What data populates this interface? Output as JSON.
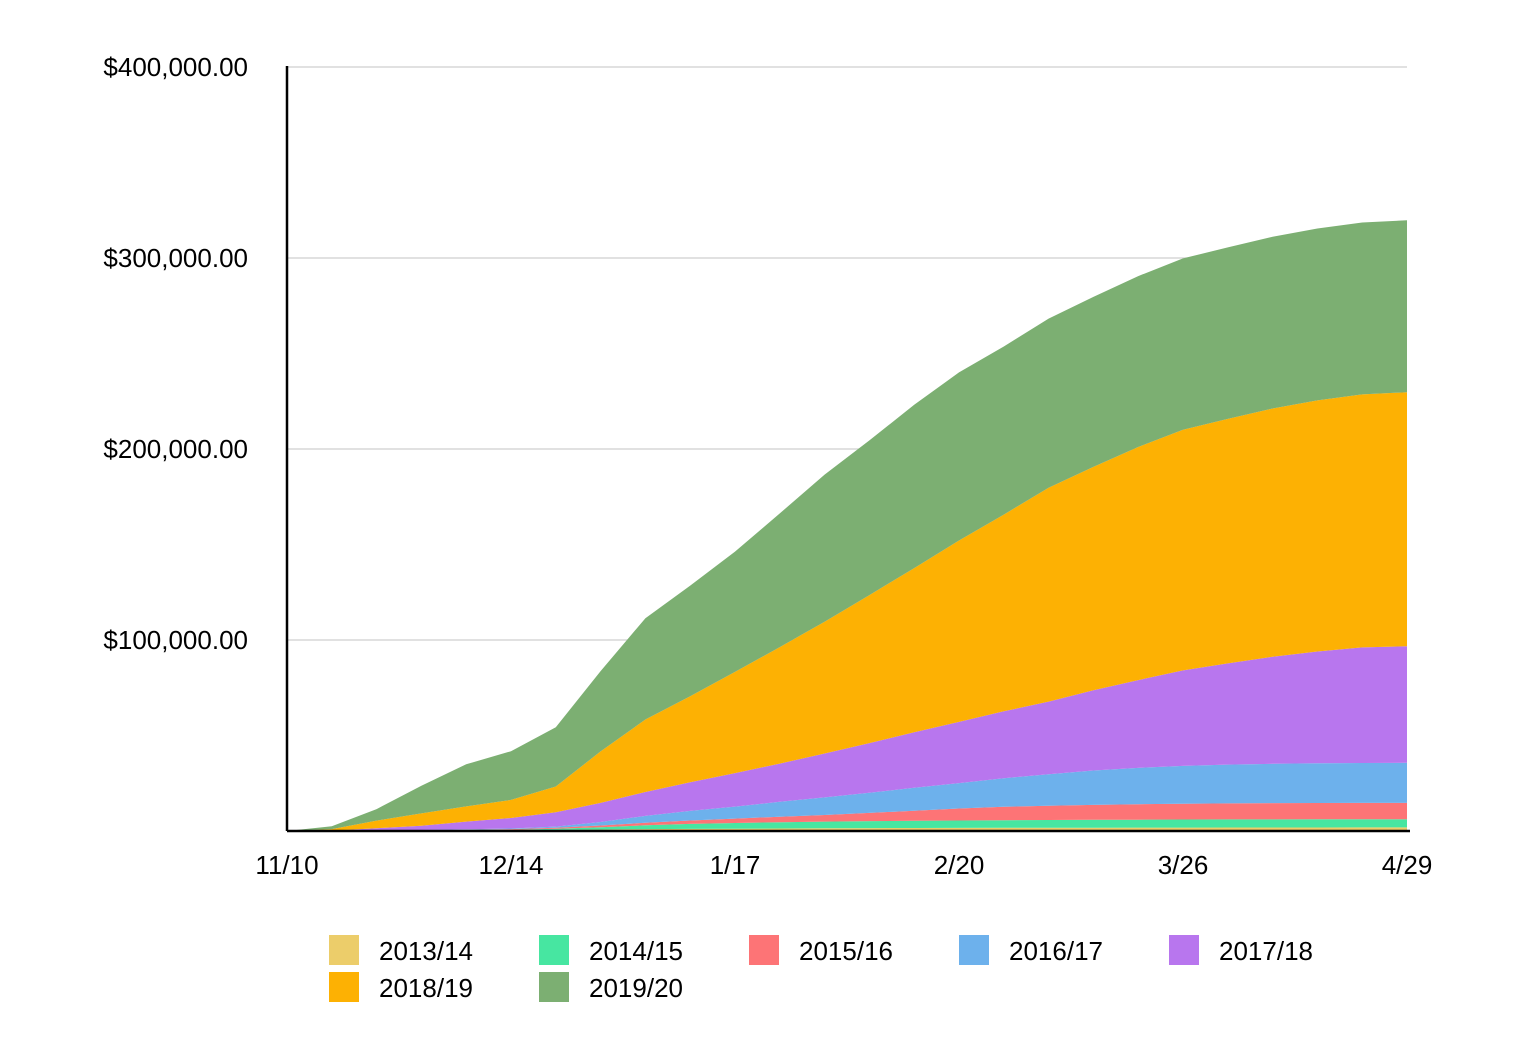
{
  "chart_data": {
    "type": "area",
    "stacked": true,
    "x": [
      "11/10",
      "11/17",
      "11/24",
      "12/1",
      "12/8",
      "12/14",
      "12/21",
      "12/28",
      "1/4",
      "1/11",
      "1/17",
      "1/24",
      "1/31",
      "2/7",
      "2/14",
      "2/20",
      "2/27",
      "3/5",
      "3/12",
      "3/19",
      "3/26",
      "4/2",
      "4/9",
      "4/16",
      "4/22",
      "4/29"
    ],
    "x_tick_labels": [
      "11/10",
      "12/14",
      "1/17",
      "2/20",
      "3/26",
      "4/29"
    ],
    "ylim": [
      0,
      400000
    ],
    "y_ticks": [
      0,
      100000,
      200000,
      300000,
      400000
    ],
    "y_tick_labels": [
      "",
      "$100,000.00",
      "$200,000.00",
      "$300,000.00",
      "$400,000.00"
    ],
    "grid": true,
    "legend_position": "bottom",
    "series": [
      {
        "name": "2013/14",
        "color": "#eccd6a",
        "values": [
          0,
          0,
          100,
          200,
          300,
          400,
          600,
          800,
          1000,
          1100,
          1200,
          1300,
          1400,
          1500,
          1550,
          1600,
          1650,
          1700,
          1750,
          1780,
          1800,
          1820,
          1840,
          1850,
          1860,
          1860
        ]
      },
      {
        "name": "2014/15",
        "color": "#47e6a1",
        "values": [
          0,
          0,
          50,
          100,
          200,
          300,
          600,
          1200,
          2000,
          2600,
          3000,
          3300,
          3500,
          3700,
          3800,
          3900,
          4000,
          4050,
          4100,
          4150,
          4200,
          4230,
          4250,
          4260,
          4270,
          4270
        ]
      },
      {
        "name": "2015/16",
        "color": "#fd7476",
        "values": [
          0,
          0,
          50,
          100,
          200,
          300,
          500,
          900,
          1300,
          1800,
          2300,
          2900,
          3500,
          4300,
          5300,
          6300,
          7000,
          7500,
          7800,
          8100,
          8300,
          8400,
          8500,
          8550,
          8580,
          8600
        ]
      },
      {
        "name": "2016/17",
        "color": "#6db1ec",
        "values": [
          0,
          0,
          50,
          100,
          200,
          300,
          600,
          1800,
          3600,
          5000,
          6300,
          7800,
          9200,
          10500,
          12000,
          13300,
          15000,
          16500,
          18000,
          19000,
          19800,
          20300,
          20600,
          20800,
          20900,
          21000
        ]
      },
      {
        "name": "2017/18",
        "color": "#b876ee",
        "values": [
          0,
          200,
          1200,
          2200,
          4000,
          5500,
          7500,
          10000,
          12500,
          15000,
          17500,
          20000,
          23000,
          26000,
          29000,
          32000,
          35000,
          38000,
          42000,
          46000,
          50000,
          53000,
          56000,
          58500,
          60500,
          61000
        ]
      },
      {
        "name": "2018/19",
        "color": "#fdb103",
        "values": [
          0,
          800,
          4000,
          6500,
          8000,
          9500,
          13500,
          27000,
          38000,
          45000,
          53000,
          61000,
          69000,
          77500,
          86000,
          95000,
          103000,
          112000,
          117000,
          122000,
          126000,
          128000,
          130000,
          131500,
          132500,
          133000
        ]
      },
      {
        "name": "2019/20",
        "color": "#7caf72",
        "values": [
          0,
          1500,
          6000,
          14500,
          22000,
          25500,
          31000,
          42000,
          53000,
          58000,
          63000,
          70000,
          77000,
          81000,
          85500,
          88000,
          88000,
          88500,
          89000,
          89500,
          89700,
          89800,
          89900,
          90000,
          90000,
          90000
        ]
      }
    ]
  }
}
